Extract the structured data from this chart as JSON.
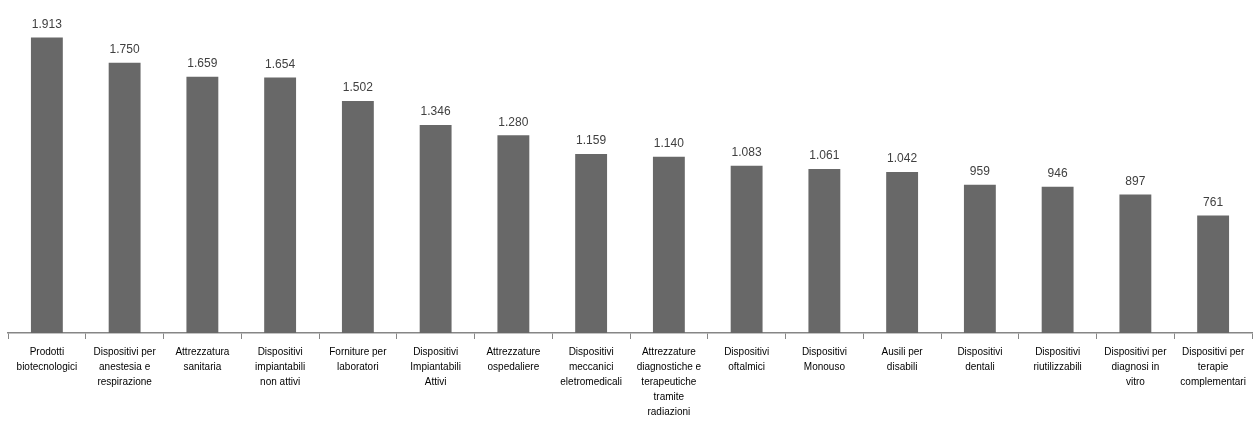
{
  "chart_data": {
    "type": "bar",
    "categories": [
      "Prodotti biotecnologici",
      "Dispositivi per anestesia e respirazione",
      "Attrezzatura sanitaria",
      "Dispositivi impiantabili non attivi",
      "Forniture per laboratori",
      "Dispositivi Impiantabili Attivi",
      "Attrezzature ospedaliere",
      "Dispositivi meccanici eletromedicali",
      "Attrezzature diagnostiche e terapeutiche tramite radiazioni",
      "Dispositivi oftalmici",
      "Dispositivi Monouso",
      "Ausili per disabili",
      "Dispositivi dentali",
      "Dispositivi riutilizzabili",
      "Dispositivi per diagnosi in vitro",
      "Dispositivi per terapie complementari"
    ],
    "values": [
      1913,
      1750,
      1659,
      1654,
      1502,
      1346,
      1280,
      1159,
      1140,
      1083,
      1061,
      1042,
      959,
      946,
      897,
      761
    ],
    "value_labels": [
      "1.913",
      "1.750",
      "1.659",
      "1.654",
      "1.502",
      "1.346",
      "1.280",
      "1.159",
      "1.140",
      "1.083",
      "1.061",
      "1.042",
      "959",
      "946",
      "897",
      "761"
    ],
    "color": "#686868",
    "tick_labels": "x"
  }
}
